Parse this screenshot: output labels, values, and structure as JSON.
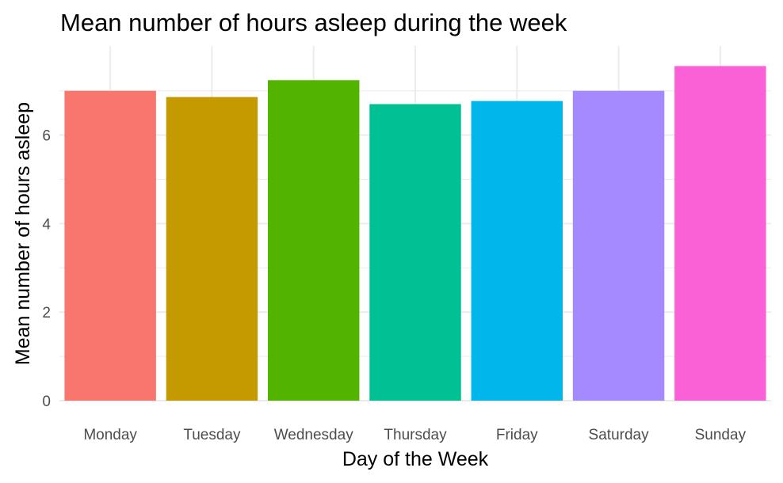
{
  "chart_data": {
    "type": "bar",
    "title": "Mean number of hours asleep during the week",
    "xlabel": "Day of the Week",
    "ylabel": "Mean number of hours asleep",
    "categories": [
      "Monday",
      "Tuesday",
      "Wednesday",
      "Thursday",
      "Friday",
      "Saturday",
      "Sunday"
    ],
    "values": [
      7.0,
      6.86,
      7.24,
      6.7,
      6.77,
      7.0,
      7.56
    ],
    "colors": [
      "#F8766D",
      "#C49A00",
      "#53B400",
      "#00C094",
      "#00B6EB",
      "#A58AFF",
      "#FB61D7"
    ],
    "yticks": [
      0,
      2,
      4,
      6
    ],
    "ylim": [
      0,
      7.9
    ],
    "grid": true,
    "legend": "none"
  }
}
